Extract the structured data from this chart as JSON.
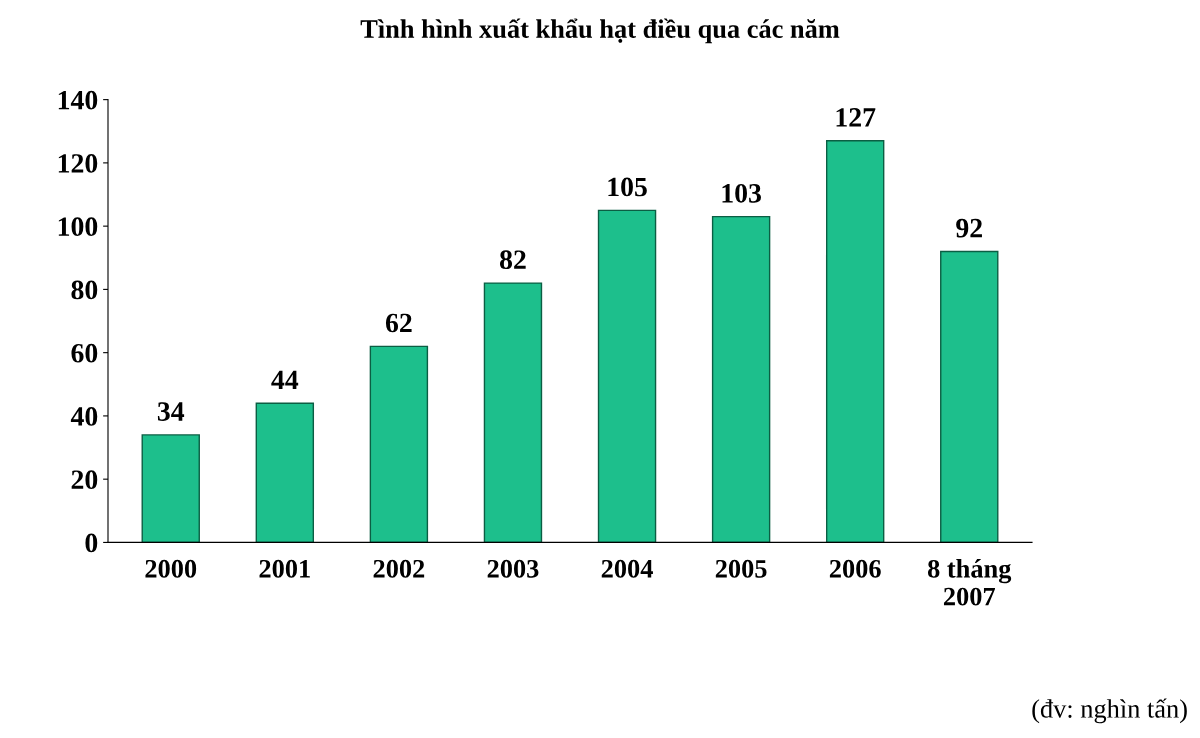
{
  "chart_data": {
    "type": "bar",
    "title": "Tình hình xuất khẩu hạt điều qua các năm",
    "categories": [
      "2000",
      "2001",
      "2002",
      "2003",
      "2004",
      "2005",
      "2006",
      "8 tháng\n2007"
    ],
    "values": [
      34,
      44,
      62,
      82,
      105,
      103,
      127,
      92
    ],
    "color": "#1dbf8c",
    "ylim": [
      0,
      140
    ],
    "yticks": [
      0,
      20,
      40,
      60,
      80,
      100,
      120,
      140
    ],
    "data_labels": true,
    "grid": false,
    "annotations": [
      "(đv: nghìn tấn)"
    ]
  }
}
